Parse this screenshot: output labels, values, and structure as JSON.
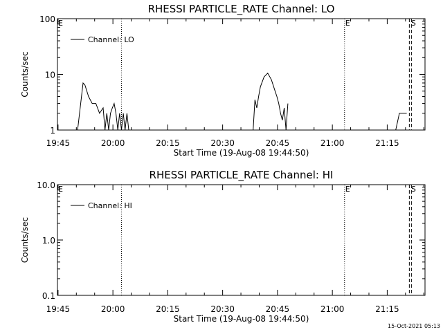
{
  "chart_data": [
    {
      "type": "line",
      "title": "RHESSI PARTICLE_RATE Channel: LO",
      "xlabel": "Start Time (19-Aug-08 19:44:50)",
      "ylabel": "Counts/sec",
      "yscale": "log",
      "ylim": [
        1,
        100
      ],
      "xlim": [
        "19:44:50",
        "21:25:20"
      ],
      "x_ticks": [
        "19:45",
        "20:00",
        "20:15",
        "20:30",
        "20:45",
        "21:00",
        "21:15"
      ],
      "y_ticks": [
        "1",
        "10",
        "100"
      ],
      "grid": false,
      "legend": {
        "position": "top-left",
        "entries": [
          "Channel: LO"
        ]
      },
      "markers": [
        {
          "label": "E",
          "time": "19:44:50",
          "style": "none"
        },
        {
          "label": "",
          "time": "20:02:20",
          "style": "dotted"
        },
        {
          "label": "E",
          "time": "21:03:20",
          "style": "dotted"
        },
        {
          "label": "S",
          "time": "21:21:20",
          "style": "dashed"
        }
      ],
      "series": [
        {
          "name": "Channel: LO",
          "x": [
            "19:50:20",
            "19:51:50",
            "19:52:20",
            "19:53:20",
            "19:54:20",
            "19:55:20",
            "19:56:20",
            "19:57:20",
            "19:57:50",
            "19:58:20",
            "19:58:50",
            "19:59:20",
            "19:59:50",
            "20:00:20",
            "20:00:50",
            "20:01:20",
            "20:01:50",
            "20:02:20",
            "20:02:50",
            "20:03:20",
            "20:03:50",
            "20:04:20",
            "20:38:20",
            "20:38:50",
            "20:39:20",
            "20:39:50",
            "20:40:20",
            "20:41:20",
            "20:42:20",
            "20:43:20",
            "20:44:20",
            "20:44:50",
            "20:45:20",
            "20:45:50",
            "20:46:20",
            "20:46:50",
            "20:47:20",
            "20:47:50",
            "21:17:20",
            "21:18:20",
            "21:19:20",
            "21:20:20"
          ],
          "y": [
            1,
            7,
            6.5,
            4,
            3,
            3,
            2,
            2.5,
            1,
            2,
            1,
            2,
            2.5,
            3,
            2,
            1,
            2,
            1,
            2,
            1,
            2,
            1,
            1,
            3.5,
            2.5,
            4,
            6,
            9,
            10.5,
            8,
            5,
            4,
            3,
            2,
            1.5,
            2.5,
            1,
            3,
            1,
            2,
            2,
            2
          ]
        }
      ],
      "timestamp": ""
    },
    {
      "type": "line",
      "title": "RHESSI PARTICLE_RATE Channel: HI",
      "xlabel": "Start Time (19-Aug-08 19:44:50)",
      "ylabel": "Counts/sec",
      "yscale": "log",
      "ylim": [
        0.1,
        10
      ],
      "xlim": [
        "19:44:50",
        "21:25:20"
      ],
      "x_ticks": [
        "19:45",
        "20:00",
        "20:15",
        "20:30",
        "20:45",
        "21:00",
        "21:15"
      ],
      "y_ticks": [
        "0.1",
        "1.0",
        "10.0"
      ],
      "grid": false,
      "legend": {
        "position": "top-left",
        "entries": [
          "Channel: HI"
        ]
      },
      "markers": [
        {
          "label": "E",
          "time": "19:44:50",
          "style": "none"
        },
        {
          "label": "",
          "time": "20:02:20",
          "style": "dotted"
        },
        {
          "label": "E",
          "time": "21:03:20",
          "style": "dotted"
        },
        {
          "label": "S",
          "time": "21:21:20",
          "style": "dashed"
        }
      ],
      "series": [
        {
          "name": "Channel: HI",
          "x": [],
          "y": []
        }
      ],
      "timestamp": "15-Oct-2021 05:13"
    }
  ]
}
